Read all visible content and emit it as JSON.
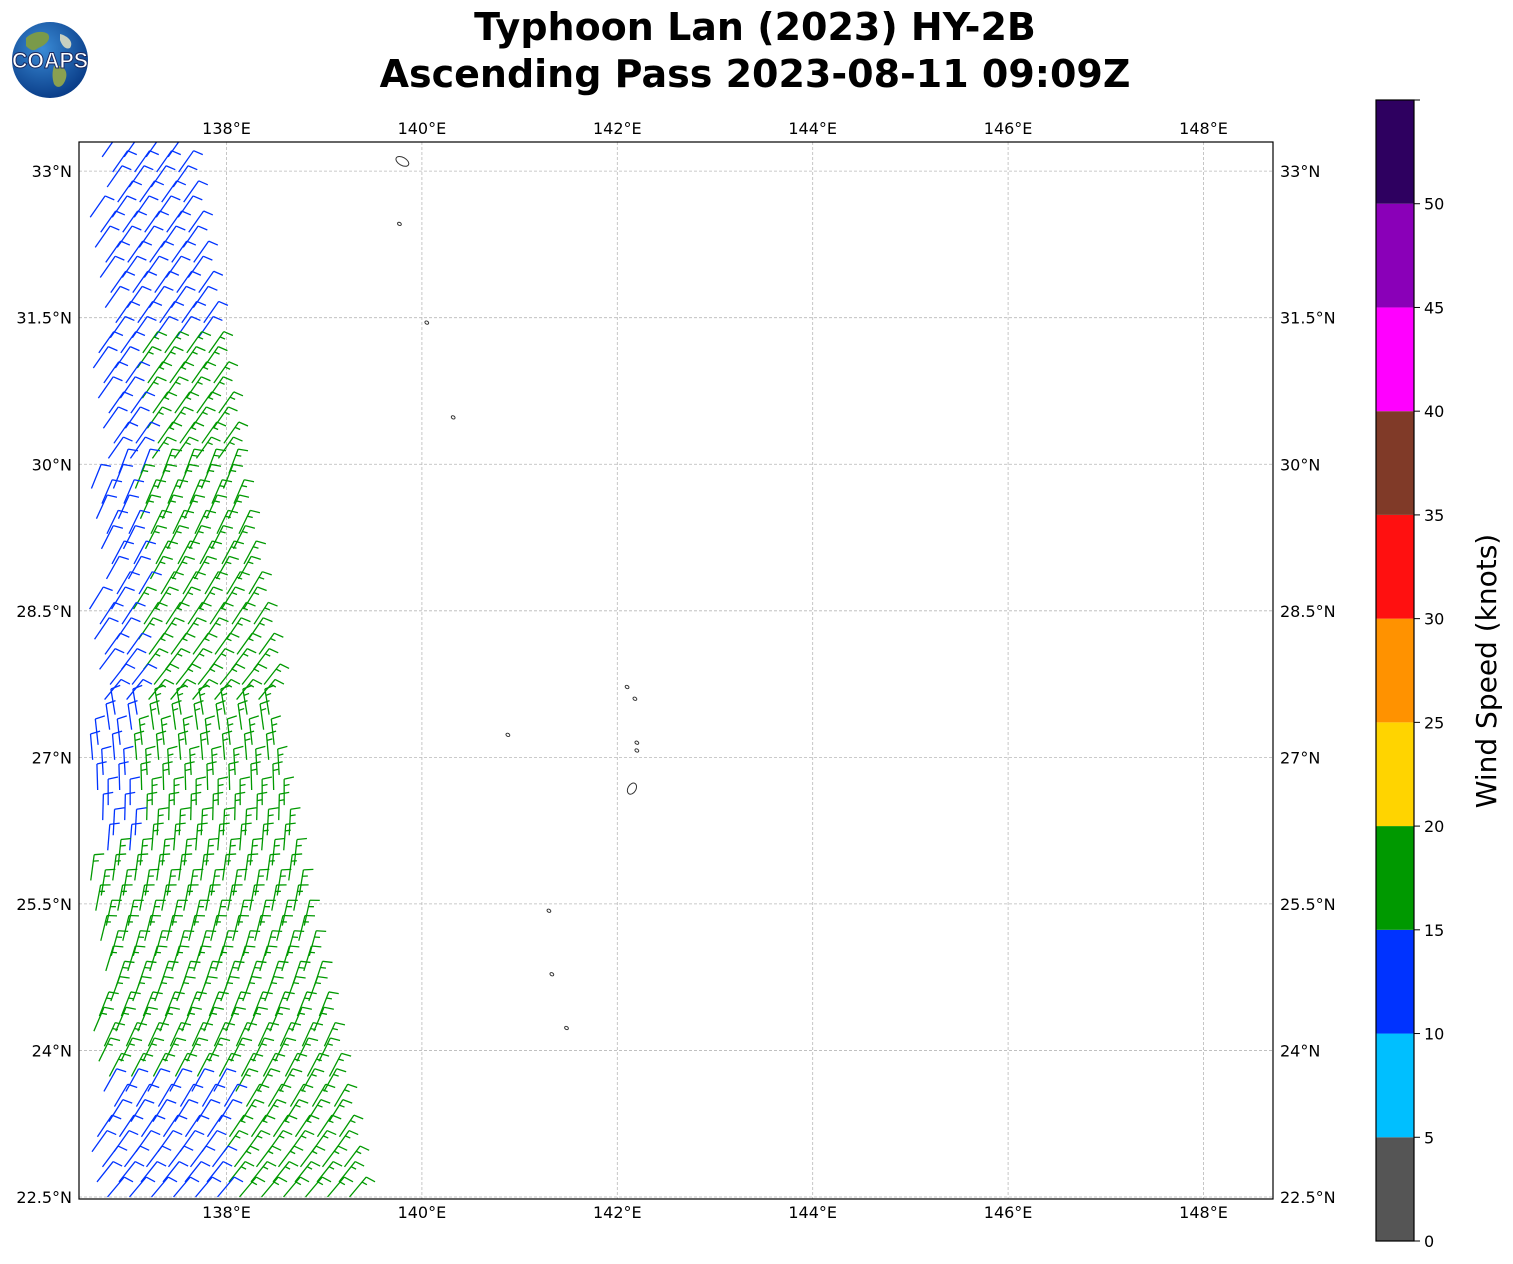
{
  "title": {
    "line1": "Typhoon Lan (2023) HY-2B",
    "line2": "Ascending Pass 2023-08-11 09:09Z"
  },
  "logo": {
    "text": "COAPS",
    "icon": "globe-icon"
  },
  "map": {
    "lon_range": [
      136.5,
      148.7
    ],
    "lat_range": [
      22.5,
      33.3
    ],
    "lon_ticks": [
      {
        "value": 138,
        "label": "138°E"
      },
      {
        "value": 140,
        "label": "140°E"
      },
      {
        "value": 142,
        "label": "142°E"
      },
      {
        "value": 144,
        "label": "144°E"
      },
      {
        "value": 146,
        "label": "146°E"
      },
      {
        "value": 148,
        "label": "148°E"
      }
    ],
    "lat_ticks": [
      {
        "value": 33,
        "label": "33°N"
      },
      {
        "value": 31.5,
        "label": "31.5°N"
      },
      {
        "value": 30,
        "label": "30°N"
      },
      {
        "value": 28.5,
        "label": "28.5°N"
      },
      {
        "value": 27,
        "label": "27°N"
      },
      {
        "value": 25.5,
        "label": "25.5°N"
      },
      {
        "value": 24,
        "label": "24°N"
      },
      {
        "value": 22.5,
        "label": "22.5°N"
      }
    ],
    "gridlines": true,
    "islands": [
      {
        "lon": 139.8,
        "lat": 33.1
      },
      {
        "lon": 139.77,
        "lat": 32.46
      },
      {
        "lon": 140.05,
        "lat": 31.45
      },
      {
        "lon": 140.32,
        "lat": 30.48
      },
      {
        "lon": 142.1,
        "lat": 27.72
      },
      {
        "lon": 142.18,
        "lat": 27.6
      },
      {
        "lon": 142.2,
        "lat": 27.15
      },
      {
        "lon": 142.2,
        "lat": 27.07
      },
      {
        "lon": 142.15,
        "lat": 26.68
      },
      {
        "lon": 140.88,
        "lat": 27.23
      },
      {
        "lon": 141.3,
        "lat": 25.43
      },
      {
        "lon": 141.33,
        "lat": 24.78
      },
      {
        "lon": 141.48,
        "lat": 24.23
      }
    ]
  },
  "swath": {
    "west_edge_lon": 136.5,
    "east_edge_north": {
      "lon": 137.5,
      "lat": 33.3
    },
    "east_edge_south": {
      "lon": 139.3,
      "lat": 22.5
    },
    "barb_colors": {
      "10-15": "#0033ff",
      "15-20": "#009900"
    }
  },
  "colorbar": {
    "title": "Wind Speed (knots)",
    "bins": [
      {
        "min": 0,
        "max": 5,
        "color": "#555555"
      },
      {
        "min": 5,
        "max": 10,
        "color": "#00bfff"
      },
      {
        "min": 10,
        "max": 15,
        "color": "#0033ff"
      },
      {
        "min": 15,
        "max": 20,
        "color": "#009900"
      },
      {
        "min": 20,
        "max": 25,
        "color": "#ffd400"
      },
      {
        "min": 25,
        "max": 30,
        "color": "#ff9200"
      },
      {
        "min": 30,
        "max": 35,
        "color": "#ff1010"
      },
      {
        "min": 35,
        "max": 40,
        "color": "#803a28"
      },
      {
        "min": 40,
        "max": 45,
        "color": "#ff00ff"
      },
      {
        "min": 45,
        "max": 50,
        "color": "#8a00b8"
      },
      {
        "min": 50,
        "max": 55,
        "color": "#2e0060"
      }
    ],
    "tick_labels": [
      "0",
      "5",
      "10",
      "15",
      "20",
      "25",
      "30",
      "35",
      "40",
      "45",
      "50"
    ]
  }
}
